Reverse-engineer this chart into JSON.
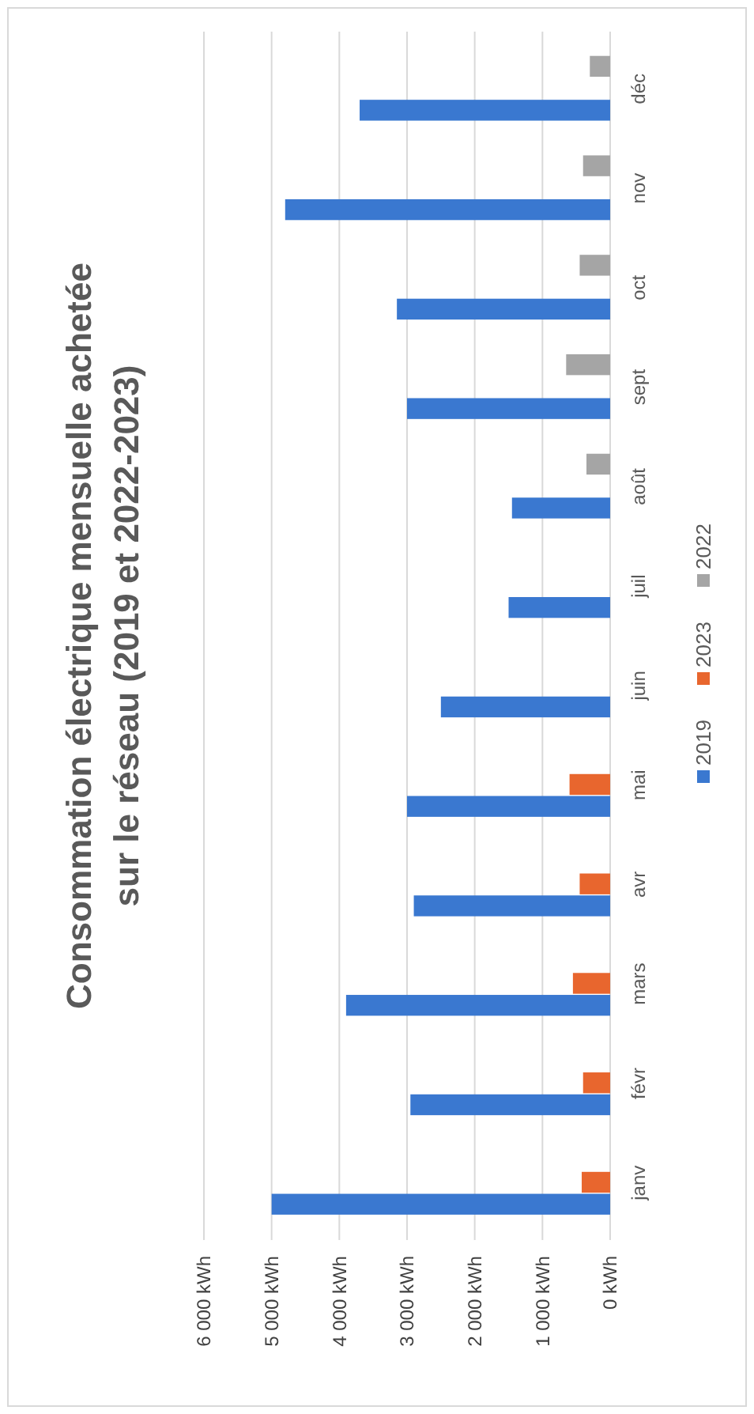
{
  "chart_data": {
    "type": "bar",
    "orientation": "horizontal",
    "title": "Consommation électrique mensuelle achetée sur le réseau (2019 et 2022-2023)",
    "categories": [
      "déc",
      "nov",
      "oct",
      "sept",
      "août",
      "juil",
      "juin",
      "mai",
      "avr",
      "mars",
      "févr",
      "janv"
    ],
    "series": [
      {
        "name": "2019",
        "color": "#3a78d0",
        "values": [
          3700,
          4800,
          3150,
          3000,
          1450,
          1500,
          2500,
          3000,
          2900,
          3900,
          2950,
          5000
        ]
      },
      {
        "name": "2023",
        "color": "#e8662e",
        "values": [
          null,
          null,
          null,
          null,
          null,
          null,
          null,
          600,
          450,
          550,
          400,
          420
        ]
      },
      {
        "name": "2022",
        "color": "#a5a5a5",
        "values": [
          300,
          400,
          450,
          650,
          350,
          null,
          null,
          null,
          null,
          null,
          null,
          null
        ]
      }
    ],
    "xlim": [
      6000,
      0
    ],
    "xticks": [
      {
        "value": 0,
        "label": "0 kWh"
      },
      {
        "value": 1000,
        "label": "1 000 kWh"
      },
      {
        "value": 2000,
        "label": "2 000 kWh"
      },
      {
        "value": 3000,
        "label": "3 000 kWh"
      },
      {
        "value": 4000,
        "label": "4 000 kWh"
      },
      {
        "value": 5000,
        "label": "5 000 kWh"
      },
      {
        "value": 6000,
        "label": "6 000 kWh"
      }
    ],
    "grid": "x",
    "legend": "right"
  }
}
